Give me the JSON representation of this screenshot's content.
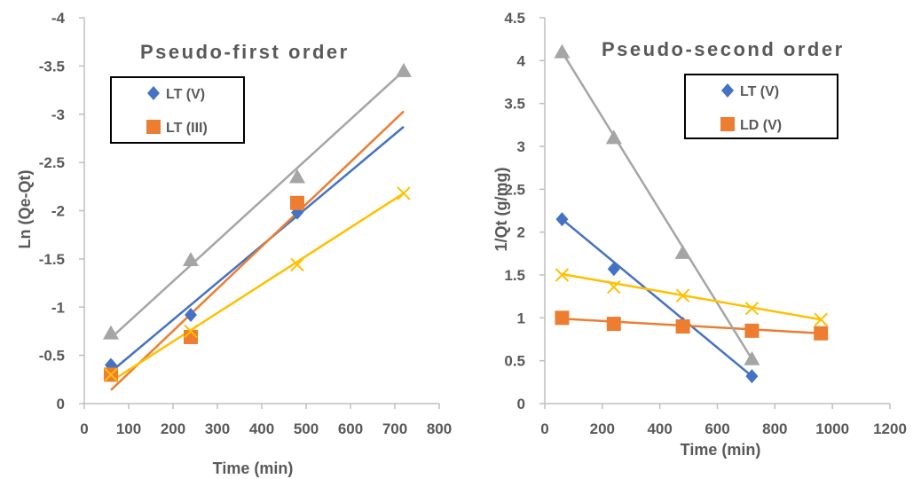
{
  "chart_data": [
    {
      "type": "scatter",
      "title": "Pseudo-first order",
      "xlabel": "Time (min)",
      "ylabel": "Ln (Qe-Qt)",
      "xlim": [
        0,
        800
      ],
      "ylim": [
        0,
        -4
      ],
      "x_ticks": [
        "0",
        "100",
        "200",
        "300",
        "400",
        "500",
        "600",
        "700",
        "800"
      ],
      "y_ticks": [
        "0",
        "-0.5",
        "-1",
        "-1.5",
        "-2",
        "-2.5",
        "-3",
        "-3.5",
        "-4"
      ],
      "grid": false,
      "legend_position": "top-left",
      "series": [
        {
          "name": "LT (V)",
          "marker": "diamond",
          "color": "#4472C4",
          "in_legend": true,
          "x": [
            60,
            240,
            480
          ],
          "y": [
            -0.4,
            -0.92,
            -1.98
          ],
          "trend": [
            [
              60,
              -0.33
            ],
            [
              720,
              -2.87
            ]
          ]
        },
        {
          "name": "LT (III)",
          "marker": "square",
          "color": "#ED7D31",
          "in_legend": true,
          "x": [
            60,
            240,
            480
          ],
          "y": [
            -0.3,
            -0.69,
            -2.08
          ],
          "trend": [
            [
              60,
              -0.14
            ],
            [
              720,
              -3.03
            ]
          ]
        },
        {
          "marker": "triangle",
          "color": "#A5A5A5",
          "in_legend": false,
          "x": [
            60,
            240,
            480,
            720
          ],
          "y": [
            -0.73,
            -1.49,
            -2.35,
            -3.45
          ],
          "trend": [
            [
              60,
              -0.68
            ],
            [
              720,
              -3.45
            ]
          ]
        },
        {
          "marker": "x",
          "color": "#FFC000",
          "in_legend": false,
          "x": [
            60,
            240,
            480,
            720
          ],
          "y": [
            -0.3,
            -0.75,
            -1.44,
            -2.18
          ],
          "trend": [
            [
              60,
              -0.23
            ],
            [
              720,
              -2.18
            ]
          ]
        }
      ]
    },
    {
      "type": "scatter",
      "title": "Pseudo-second order",
      "xlabel": "Time (min)",
      "ylabel": "1/Qt (g/mg)",
      "xlim": [
        0,
        1200
      ],
      "ylim": [
        0,
        4.5
      ],
      "x_ticks": [
        "0",
        "200",
        "400",
        "600",
        "800",
        "1000",
        "1200"
      ],
      "y_ticks": [
        "0",
        "0.5",
        "1",
        "1.5",
        "2",
        "2.5",
        "3",
        "3.5",
        "4",
        "4.5"
      ],
      "grid": false,
      "legend_position": "top-right",
      "series": [
        {
          "name": "LT (V)",
          "marker": "diamond",
          "color": "#4472C4",
          "in_legend": true,
          "x": [
            60,
            240,
            480,
            720
          ],
          "y": [
            2.15,
            1.57,
            0.93,
            0.32
          ],
          "trend": [
            [
              60,
              2.15
            ],
            [
              720,
              0.32
            ]
          ]
        },
        {
          "name": "LD (V)",
          "marker": "square",
          "color": "#ED7D31",
          "in_legend": true,
          "x": [
            60,
            240,
            480,
            720,
            960
          ],
          "y": [
            1.0,
            0.93,
            0.9,
            0.85,
            0.82
          ],
          "trend": [
            [
              60,
              0.99
            ],
            [
              960,
              0.82
            ]
          ]
        },
        {
          "marker": "triangle",
          "color": "#A5A5A5",
          "in_legend": false,
          "x": [
            60,
            240,
            480,
            720
          ],
          "y": [
            4.1,
            3.1,
            1.76,
            0.52
          ],
          "trend": [
            [
              60,
              4.1
            ],
            [
              720,
              0.52
            ]
          ]
        },
        {
          "marker": "x",
          "color": "#FFC000",
          "in_legend": false,
          "x": [
            60,
            240,
            480,
            720,
            960
          ],
          "y": [
            1.5,
            1.36,
            1.26,
            1.11,
            0.98
          ],
          "trend": [
            [
              60,
              1.51
            ],
            [
              960,
              0.98
            ]
          ]
        }
      ]
    }
  ]
}
